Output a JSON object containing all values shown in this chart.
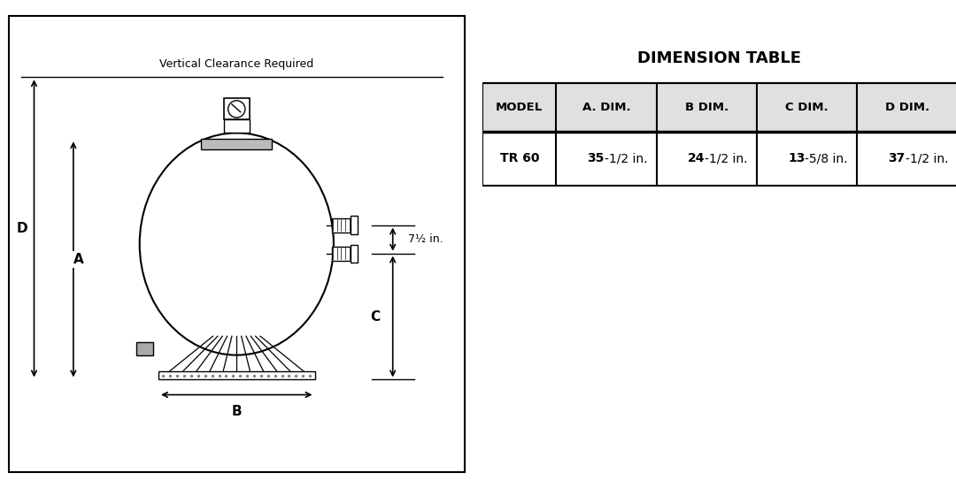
{
  "title_table": "DIMENSION TABLE",
  "table_headers": [
    "MODEL",
    "A. DIM.",
    "B DIM.",
    "C DIM.",
    "D DIM."
  ],
  "table_row": [
    "TR 60",
    "35-1/2 in.",
    "24-1/2 in.",
    "13-5/8 in.",
    "37-1/2 in."
  ],
  "clearance_text": "Vertical Clearance Required",
  "dim_labels": [
    "D",
    "A",
    "B",
    "C",
    "7½ in."
  ],
  "bg_color": "#ffffff",
  "line_color": "#000000"
}
